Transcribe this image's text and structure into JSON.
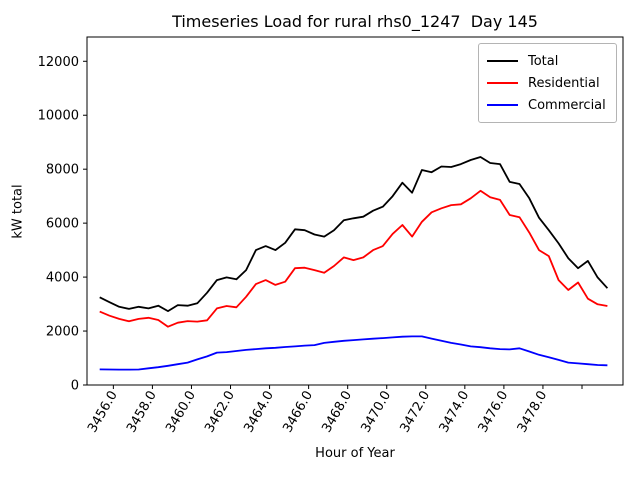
{
  "figure": {
    "title": "Timeseries Load for rural rhs0_1247  Day 145",
    "xlabel": "Hour of Year",
    "ylabel": "kW total"
  },
  "legend": {
    "position": "upper right",
    "items": [
      {
        "label": "Total",
        "color": "#000000"
      },
      {
        "label": "Residential",
        "color": "#ff0000"
      },
      {
        "label": "Commercial",
        "color": "#0000ff"
      }
    ]
  },
  "chart_data": {
    "type": "line",
    "title": "Timeseries Load for rural rhs0_1247  Day 145",
    "xlabel": "Hour of Year",
    "ylabel": "kW total",
    "grid": false,
    "legend_position": "upper right",
    "xlim": [
      3454.65,
      3482.1
    ],
    "ylim": [
      0,
      12900
    ],
    "xticks": [
      {
        "value": 3456,
        "label": "3456.0"
      },
      {
        "value": 3458,
        "label": "3458.0"
      },
      {
        "value": 3460,
        "label": "3460.0"
      },
      {
        "value": 3462,
        "label": "3462.0"
      },
      {
        "value": 3464,
        "label": "3464.0"
      },
      {
        "value": 3466,
        "label": "3466.0"
      },
      {
        "value": 3468,
        "label": "3468.0"
      },
      {
        "value": 3470,
        "label": "3470.0"
      },
      {
        "value": 3472,
        "label": "3472.0"
      },
      {
        "value": 3474,
        "label": "3474.0"
      },
      {
        "value": 3476,
        "label": "3476.0"
      },
      {
        "value": 3478,
        "label": "3478.0"
      },
      {
        "value": 3480,
        "label": ""
      }
    ],
    "yticks": [
      {
        "value": 0,
        "label": "0"
      },
      {
        "value": 2000,
        "label": "2000"
      },
      {
        "value": 4000,
        "label": "4000"
      },
      {
        "value": 6000,
        "label": "6000"
      },
      {
        "value": 8000,
        "label": "8000"
      },
      {
        "value": 10000,
        "label": "10000"
      },
      {
        "value": 12000,
        "label": "12000"
      }
    ],
    "x": [
      3455.3,
      3455.8,
      3456.3,
      3456.8,
      3457.3,
      3457.8,
      3458.3,
      3458.8,
      3459.3,
      3459.8,
      3460.3,
      3460.8,
      3461.3,
      3461.8,
      3462.3,
      3462.8,
      3463.3,
      3463.8,
      3464.3,
      3464.8,
      3465.3,
      3465.8,
      3466.3,
      3466.8,
      3467.3,
      3467.8,
      3468.3,
      3468.8,
      3469.3,
      3469.8,
      3470.3,
      3470.8,
      3471.3,
      3471.8,
      3472.3,
      3472.8,
      3473.3,
      3473.8,
      3474.3,
      3474.8,
      3475.3,
      3475.8,
      3476.3,
      3476.8,
      3477.3,
      3477.8,
      3478.3,
      3478.8,
      3479.3,
      3479.8,
      3480.3,
      3480.8,
      3481.3
    ],
    "series": [
      {
        "name": "Total",
        "color": "#000000",
        "values": [
          3250,
          3070,
          2900,
          2820,
          2900,
          2840,
          2940,
          2740,
          2960,
          2940,
          3030,
          3420,
          3890,
          3990,
          3920,
          4260,
          5000,
          5150,
          5000,
          5270,
          5770,
          5740,
          5580,
          5500,
          5740,
          6110,
          6180,
          6240,
          6460,
          6610,
          7000,
          7500,
          7130,
          7970,
          7890,
          8100,
          8080,
          8190,
          8340,
          8450,
          8230,
          8190,
          7530,
          7450,
          6920,
          6200,
          5740,
          5250,
          4700,
          4330,
          4600,
          3990,
          3590
        ]
      },
      {
        "name": "Residential",
        "color": "#ff0000",
        "values": [
          2720,
          2570,
          2450,
          2360,
          2450,
          2490,
          2410,
          2160,
          2310,
          2370,
          2350,
          2400,
          2840,
          2930,
          2880,
          3270,
          3740,
          3890,
          3710,
          3830,
          4330,
          4350,
          4260,
          4160,
          4410,
          4730,
          4630,
          4730,
          5000,
          5150,
          5600,
          5930,
          5500,
          6050,
          6400,
          6550,
          6670,
          6700,
          6920,
          7200,
          6960,
          6860,
          6300,
          6220,
          5650,
          5000,
          4780,
          3890,
          3520,
          3800,
          3200,
          2990,
          2930
        ]
      },
      {
        "name": "Commercial",
        "color": "#0000ff",
        "values": [
          580,
          575,
          570,
          570,
          575,
          620,
          660,
          710,
          770,
          830,
          950,
          1060,
          1200,
          1220,
          1260,
          1300,
          1330,
          1360,
          1380,
          1410,
          1430,
          1460,
          1480,
          1560,
          1600,
          1640,
          1665,
          1690,
          1715,
          1740,
          1765,
          1790,
          1800,
          1800,
          1720,
          1640,
          1560,
          1500,
          1430,
          1400,
          1360,
          1330,
          1320,
          1360,
          1240,
          1120,
          1030,
          930,
          830,
          800,
          770,
          740,
          730
        ]
      }
    ]
  }
}
